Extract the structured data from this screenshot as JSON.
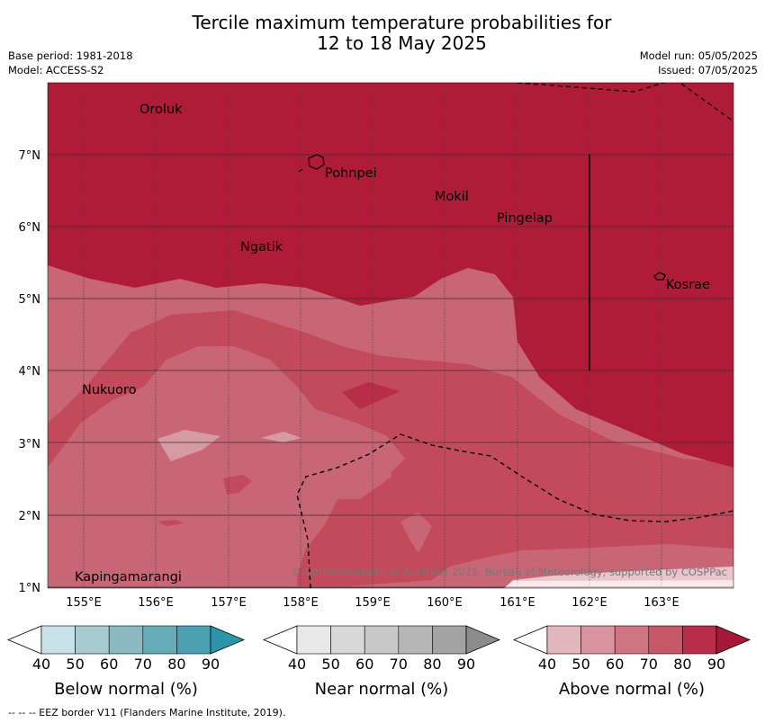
{
  "title_line1": "Tercile maximum temperature probabilities for",
  "title_line2": "12 to 18 May 2025",
  "left_meta": {
    "line1": "Base period: 1981-2018",
    "line2": "Model: ACCESS-S2"
  },
  "right_meta": {
    "line1": "Model run: 05/05/2025",
    "line2": "Issued: 07/05/2025"
  },
  "map": {
    "lon_ticks": [
      "155°E",
      "156°E",
      "157°E",
      "158°E",
      "159°E",
      "160°E",
      "161°E",
      "162°E",
      "163°E"
    ],
    "lat_ticks": [
      "1°N",
      "2°N",
      "3°N",
      "4°N",
      "5°N",
      "6°N",
      "7°N"
    ],
    "places": [
      "Oroluk",
      "Pohnpei",
      "Mokil",
      "Pingelap",
      "Ngatik",
      "Kosrae",
      "Nukuoro",
      "Kapingamarangi"
    ],
    "copyright": "© Commonwealth of Australia 2025, Bureau of Meteorology, supported by COSPPac",
    "colors": {
      "above_60": "#c96675",
      "above_70": "#c24a5b",
      "above_80": "#b01b38",
      "above_50": "#d69aa4"
    }
  },
  "legends": [
    {
      "title": "Below normal (%)",
      "ticks": [
        "40",
        "50",
        "60",
        "70",
        "80",
        "90"
      ],
      "colors": [
        "#ffffff",
        "#c9e2e8",
        "#a8cbd1",
        "#8ab9c2",
        "#67abb8",
        "#4a9fb0",
        "#2d95aa"
      ]
    },
    {
      "title": "Near normal (%)",
      "ticks": [
        "40",
        "50",
        "60",
        "70",
        "80",
        "90"
      ],
      "colors": [
        "#ffffff",
        "#e8e8e8",
        "#d8d8d8",
        "#c8c8c8",
        "#b6b6b6",
        "#a3a3a3",
        "#8c8c8c"
      ]
    },
    {
      "title": "Above normal (%)",
      "ticks": [
        "40",
        "50",
        "60",
        "70",
        "80",
        "90"
      ],
      "colors": [
        "#ffffff",
        "#e3b7be",
        "#d8959f",
        "#cf7581",
        "#c65868",
        "#b82d48",
        "#a8183a"
      ]
    }
  ],
  "footer": "--  --  -- EEZ border V11 (Flanders Marine Institute, 2019)."
}
